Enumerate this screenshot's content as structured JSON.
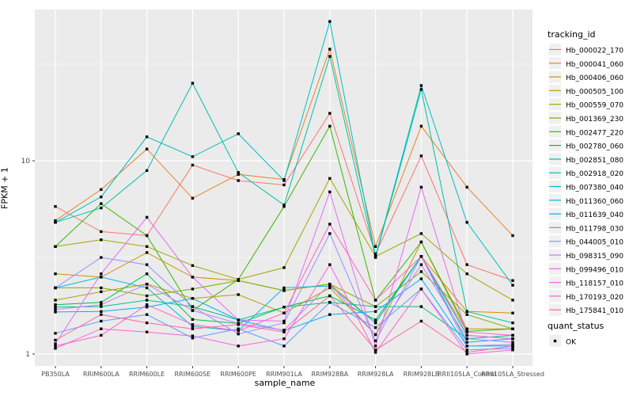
{
  "figure_title": "",
  "panel": {
    "bg_color": "#EBEBEB",
    "grid_color": "#FFFFFF",
    "tick_label_color": "#4D4D4D"
  },
  "chart_data": {
    "type": "line",
    "title": "",
    "xlabel": "sample_name",
    "ylabel": "FPKM + 1",
    "y_scale": "log10",
    "y_tick_labels": [
      "1",
      "10"
    ],
    "y_breaks": [
      1,
      10
    ],
    "y_minor_breaks": [
      3.1623,
      31.623
    ],
    "ylim": [
      1,
      60
    ],
    "grid": true,
    "legend_position": "right",
    "legend_title": "tracking_id",
    "point_legend": {
      "title": "quant_status",
      "items": [
        {
          "label": "OK",
          "marker": "black-square"
        }
      ]
    },
    "marker": "black-square",
    "categories": [
      "PB350LA",
      "RRIM600LA",
      "RRIM600LE",
      "RRIM600SE",
      "RRIM600PE",
      "RRIM901LA",
      "RRIM928BA",
      "RRIM928LA",
      "RRIM928LB",
      "RRII105LA_Control",
      "RRII105LA_Stressed"
    ],
    "series": [
      {
        "name": "Hb_000022_170",
        "color": "#F8766D",
        "values": [
          5.8,
          4.3,
          4.1,
          9.5,
          7.9,
          7.5,
          17.6,
          3.3,
          10.6,
          2.9,
          2.4
        ]
      },
      {
        "name": "Hb_000041_060",
        "color": "#E88526",
        "values": [
          4.9,
          7.1,
          11.5,
          6.4,
          8.5,
          8.0,
          37.8,
          3.6,
          15.1,
          7.3,
          4.1
        ]
      },
      {
        "name": "Hb_000406_060",
        "color": "#D39200",
        "values": [
          2.6,
          2.5,
          3.35,
          2.5,
          2.4,
          2.13,
          2.3,
          1.45,
          3.2,
          1.66,
          1.63
        ]
      },
      {
        "name": "Hb_000505_100",
        "color": "#BC9D00",
        "values": [
          1.9,
          2.1,
          2.3,
          1.94,
          2.03,
          1.63,
          2.2,
          1.26,
          3.8,
          1.35,
          1.35
        ]
      },
      {
        "name": "Hb_000559_070",
        "color": "#A3A500",
        "values": [
          3.6,
          3.9,
          3.6,
          2.87,
          2.43,
          2.8,
          8.1,
          3.2,
          4.2,
          2.6,
          1.9
        ]
      },
      {
        "name": "Hb_001369_230",
        "color": "#7CAE00",
        "values": [
          2.2,
          2.2,
          2.0,
          2.17,
          2.4,
          2.13,
          2.3,
          1.76,
          2.67,
          1.6,
          1.35
        ]
      },
      {
        "name": "Hb_002477_220",
        "color": "#39B600",
        "values": [
          3.6,
          6.0,
          4.1,
          1.68,
          2.43,
          5.8,
          15.1,
          1.9,
          3.8,
          1.31,
          1.35
        ]
      },
      {
        "name": "Hb_002780_060",
        "color": "#00BB4E",
        "values": [
          1.8,
          1.85,
          2.6,
          1.51,
          1.44,
          1.75,
          2.0,
          1.5,
          3.2,
          1.25,
          1.2
        ]
      },
      {
        "name": "Hb_002851_080",
        "color": "#00C08B",
        "values": [
          1.75,
          1.76,
          1.9,
          1.76,
          1.5,
          1.75,
          1.85,
          1.76,
          1.76,
          1.2,
          1.25
        ]
      },
      {
        "name": "Hb_002918_020",
        "color": "#00C1A7",
        "values": [
          4.8,
          5.7,
          8.9,
          25.2,
          8.7,
          5.9,
          34.7,
          3.16,
          23.4,
          1.66,
          1.45
        ]
      },
      {
        "name": "Hb_007380_040",
        "color": "#00BFC4",
        "values": [
          4.8,
          6.5,
          13.3,
          10.5,
          13.8,
          7.9,
          52.6,
          3.2,
          24.5,
          4.8,
          2.27
        ]
      },
      {
        "name": "Hb_011360_060",
        "color": "#00B9E3",
        "values": [
          2.2,
          2.5,
          2.2,
          1.39,
          1.32,
          2.2,
          2.25,
          1.45,
          3.2,
          1.15,
          1.2
        ]
      },
      {
        "name": "Hb_011639_040",
        "color": "#00B0F6",
        "values": [
          1.65,
          1.66,
          1.75,
          1.94,
          1.5,
          1.32,
          1.6,
          1.66,
          2.45,
          1.1,
          1.1
        ]
      },
      {
        "name": "Hb_011798_030",
        "color": "#619CFF",
        "values": [
          1.28,
          1.48,
          1.6,
          1.21,
          1.35,
          1.1,
          1.85,
          1.37,
          2.17,
          1.05,
          1.07
        ]
      },
      {
        "name": "Hb_044005_010",
        "color": "#9590FF",
        "values": [
          2.2,
          3.16,
          2.9,
          1.76,
          1.27,
          1.45,
          4.2,
          1.17,
          3.2,
          1.1,
          1.12
        ]
      },
      {
        "name": "Hb_098315_090",
        "color": "#C77CFF",
        "values": [
          1.7,
          1.8,
          2.3,
          1.68,
          1.44,
          1.33,
          2.3,
          1.26,
          2.9,
          1.2,
          1.15
        ]
      },
      {
        "name": "Hb_099496_010",
        "color": "#E76BF3",
        "values": [
          1.13,
          2.6,
          5.1,
          2.5,
          1.5,
          1.48,
          6.9,
          1.1,
          7.3,
          1.25,
          1.2
        ]
      },
      {
        "name": "Hb_118157_010",
        "color": "#FA62DB",
        "values": [
          1.07,
          1.35,
          1.3,
          1.24,
          1.1,
          1.2,
          2.9,
          1.02,
          2.17,
          1.0,
          1.05
        ]
      },
      {
        "name": "Hb_170193_020",
        "color": "#FF61C7",
        "values": [
          1.1,
          1.25,
          1.8,
          1.42,
          1.32,
          1.63,
          4.7,
          1.9,
          3.2,
          1.3,
          1.25
        ]
      },
      {
        "name": "Hb_175841_010",
        "color": "#FF689E",
        "values": [
          1.18,
          1.6,
          1.45,
          1.35,
          1.42,
          1.3,
          2.0,
          1.05,
          1.48,
          1.02,
          1.1
        ]
      }
    ]
  }
}
